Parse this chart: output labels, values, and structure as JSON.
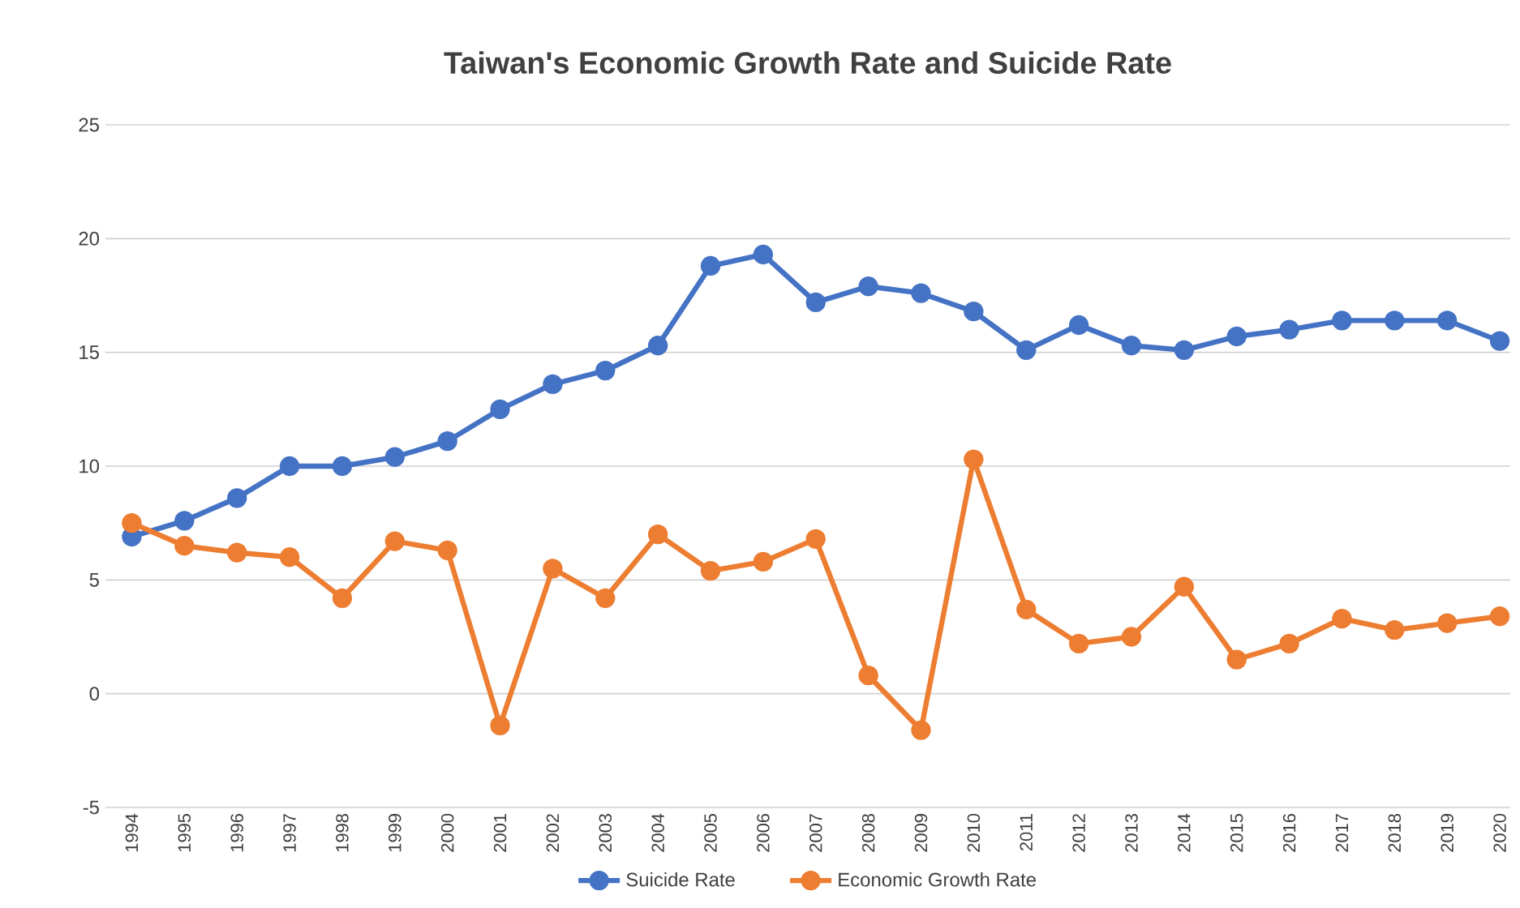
{
  "chart_data": {
    "type": "line",
    "title": "Taiwan's Economic Growth Rate and Suicide Rate",
    "categories": [
      "1994",
      "1995",
      "1996",
      "1997",
      "1998",
      "1999",
      "2000",
      "2001",
      "2002",
      "2003",
      "2004",
      "2005",
      "2006",
      "2007",
      "2008",
      "2009",
      "2010",
      "2011",
      "2012",
      "2013",
      "2014",
      "2015",
      "2016",
      "2017",
      "2018",
      "2019",
      "2020"
    ],
    "series": [
      {
        "name": "Suicide Rate",
        "color": "#4472c4",
        "values": [
          6.9,
          7.6,
          8.6,
          10.0,
          10.0,
          10.4,
          11.1,
          12.5,
          13.6,
          14.2,
          15.3,
          18.8,
          19.3,
          17.2,
          17.9,
          17.6,
          16.8,
          15.1,
          16.2,
          15.3,
          15.1,
          15.7,
          16.0,
          16.4,
          16.4,
          16.4,
          15.5
        ]
      },
      {
        "name": "Economic Growth Rate",
        "color": "#ed7d31",
        "values": [
          7.5,
          6.5,
          6.2,
          6.0,
          4.2,
          6.7,
          6.3,
          -1.4,
          5.5,
          4.2,
          7.0,
          5.4,
          5.8,
          6.8,
          0.8,
          -1.6,
          10.3,
          3.7,
          2.2,
          2.5,
          4.7,
          1.5,
          2.2,
          3.3,
          2.8,
          3.1,
          3.4
        ]
      }
    ],
    "ylim": [
      -5,
      25
    ],
    "yticks": [
      -5,
      0,
      5,
      10,
      15,
      20,
      25
    ],
    "grid": "y",
    "legend": "bottom",
    "marker": "circle",
    "line_style": "solid"
  }
}
